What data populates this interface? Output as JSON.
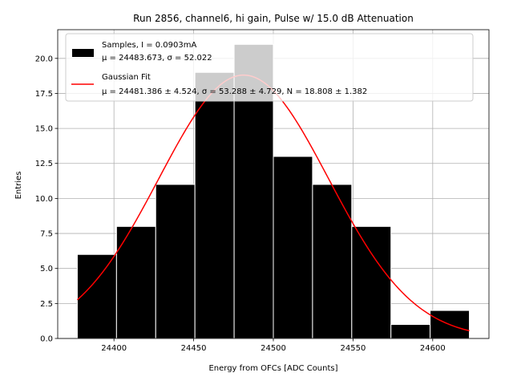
{
  "chart_data": {
    "type": "bar",
    "title": "Run 2856, channel6, hi gain, Pulse w/ 15.0 dB Attenuation",
    "xlabel": "Energy from OFCs [ADC Counts]",
    "ylabel": "Entries",
    "xlim": [
      24364.7,
      24635.3
    ],
    "ylim": [
      0,
      22.05
    ],
    "xticks": [
      24400,
      24450,
      24500,
      24550,
      24600
    ],
    "yticks": [
      0.0,
      2.5,
      5.0,
      7.5,
      10.0,
      12.5,
      15.0,
      17.5,
      20.0
    ],
    "grid": true,
    "legend_position": "top-left",
    "histogram": {
      "bin_edges": [
        24377,
        24401.6,
        24426.2,
        24450.8,
        24475.4,
        24500.0,
        24524.6,
        24549.2,
        24573.8,
        24598.4,
        24623
      ],
      "counts": [
        6,
        8,
        11,
        19,
        21,
        13,
        11,
        8,
        1,
        2
      ],
      "color": "#000000",
      "edgecolor": "#ffffff"
    },
    "fit": {
      "mu": 24481.386,
      "sigma": 53.288,
      "N": 18.808,
      "x_range": [
        24377,
        24623
      ],
      "color": "#ff0000"
    },
    "legend": [
      {
        "line1": "Samples, I = 0.0903mA",
        "line2": "μ = 24483.673, σ = 52.022",
        "kind": "patch",
        "color": "#000000"
      },
      {
        "line1": "Gaussian Fit",
        "line2": "μ = 24481.386 ± 4.524, σ = 53.288 ± 4.729, N = 18.808 ± 1.382",
        "kind": "line",
        "color": "#ff0000"
      }
    ]
  }
}
